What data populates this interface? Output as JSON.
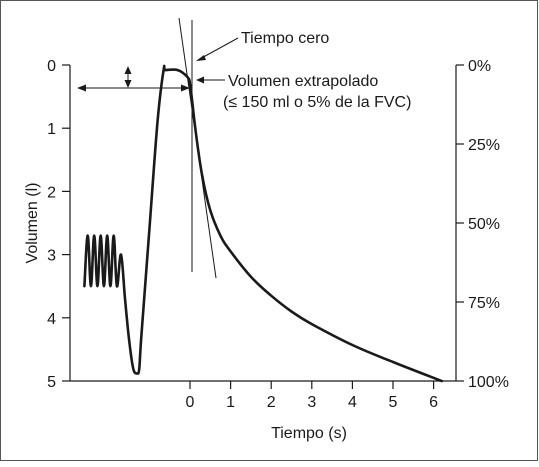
{
  "chart_data": {
    "type": "line",
    "xlabel": "Tiempo (s)",
    "ylabel": "Volumen (l)",
    "x_ticks": [
      "0",
      "1",
      "2",
      "3",
      "4",
      "5",
      "6"
    ],
    "y_ticks": [
      "0",
      "1",
      "2",
      "3",
      "4",
      "5"
    ],
    "y2_ticks": [
      "0%",
      "25%",
      "50%",
      "75%",
      "100%"
    ],
    "xlim": [
      -2.8,
      6.3
    ],
    "ylim": [
      0,
      5
    ],
    "y_inverted": true,
    "grid": false,
    "annotations": {
      "tiempo_cero": "Tiempo cero",
      "volumen_extrapolado": "Volumen extrapolado",
      "volumen_extrapolado_note": "(≤ 150 ml o 5% de la FVC)"
    },
    "series": [
      {
        "x": [
          -2.6,
          -2.52,
          -2.44,
          -2.36,
          -2.28,
          -2.2,
          -2.12,
          -2.04,
          -1.96,
          -1.88,
          -1.8,
          -1.7,
          -1.6,
          -1.5,
          -1.4,
          -1.3,
          -1.25,
          -1.2,
          -1.0,
          -0.8,
          -0.65,
          -0.6,
          -0.3,
          -0.05,
          0.0,
          0.05,
          0.15,
          0.3,
          0.5,
          0.75,
          1.0,
          1.5,
          2.0,
          2.5,
          3.0,
          4.0,
          5.0,
          6.2
        ],
        "y": [
          3.5,
          2.7,
          3.5,
          2.7,
          3.5,
          2.7,
          3.5,
          2.7,
          3.5,
          2.7,
          3.5,
          3.0,
          3.7,
          4.35,
          4.8,
          4.88,
          4.8,
          4.3,
          2.6,
          0.9,
          0.08,
          0.08,
          0.08,
          0.2,
          0.3,
          0.55,
          1.1,
          1.75,
          2.3,
          2.7,
          2.95,
          3.35,
          3.65,
          3.9,
          4.1,
          4.43,
          4.7,
          5.0
        ]
      }
    ]
  }
}
